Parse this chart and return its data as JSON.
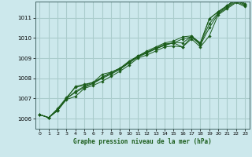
{
  "xlabel": "Graphe pression niveau de la mer (hPa)",
  "background_color": "#cce8ec",
  "grid_color": "#aacccc",
  "line_color": "#1a5c1a",
  "xlim": [
    -0.5,
    23.5
  ],
  "ylim": [
    1005.5,
    1011.8
  ],
  "yticks": [
    1006,
    1007,
    1008,
    1009,
    1010,
    1011
  ],
  "xticks": [
    0,
    1,
    2,
    3,
    4,
    5,
    6,
    7,
    8,
    9,
    10,
    11,
    12,
    13,
    14,
    15,
    16,
    17,
    18,
    19,
    20,
    21,
    22,
    23
  ],
  "series": [
    [
      1006.2,
      1006.05,
      1006.4,
      1006.95,
      1007.1,
      1007.5,
      1007.65,
      1007.85,
      1008.1,
      1008.35,
      1008.65,
      1009.0,
      1009.15,
      1009.35,
      1009.55,
      1009.6,
      1009.55,
      1009.95,
      1009.55,
      1010.1,
      1011.15,
      1011.45,
      1011.75,
      1011.55
    ],
    [
      1006.2,
      1006.05,
      1006.5,
      1007.05,
      1007.55,
      1007.65,
      1007.8,
      1008.2,
      1008.3,
      1008.5,
      1008.8,
      1009.1,
      1009.3,
      1009.5,
      1009.7,
      1009.75,
      1009.95,
      1010.05,
      1009.75,
      1010.95,
      1011.3,
      1011.6,
      1011.9,
      1011.65
    ],
    [
      1006.2,
      1006.05,
      1006.45,
      1007.0,
      1007.3,
      1007.55,
      1007.75,
      1008.0,
      1008.2,
      1008.45,
      1008.75,
      1009.05,
      1009.25,
      1009.45,
      1009.65,
      1009.75,
      1009.55,
      1010.05,
      1009.65,
      1010.5,
      1011.2,
      1011.5,
      1011.8,
      1011.6
    ],
    [
      1006.2,
      1006.05,
      1006.4,
      1007.0,
      1007.6,
      1007.7,
      1007.8,
      1008.05,
      1008.3,
      1008.5,
      1008.85,
      1009.1,
      1009.35,
      1009.55,
      1009.75,
      1009.85,
      1010.05,
      1010.1,
      1009.75,
      1010.95,
      1011.3,
      1011.6,
      1011.95,
      1011.7
    ],
    [
      1006.2,
      1006.05,
      1006.45,
      1007.0,
      1007.35,
      1007.6,
      1007.75,
      1008.05,
      1008.25,
      1008.45,
      1008.8,
      1009.08,
      1009.28,
      1009.48,
      1009.62,
      1009.78,
      1009.75,
      1010.08,
      1009.7,
      1010.7,
      1011.25,
      1011.55,
      1011.85,
      1011.65
    ]
  ]
}
